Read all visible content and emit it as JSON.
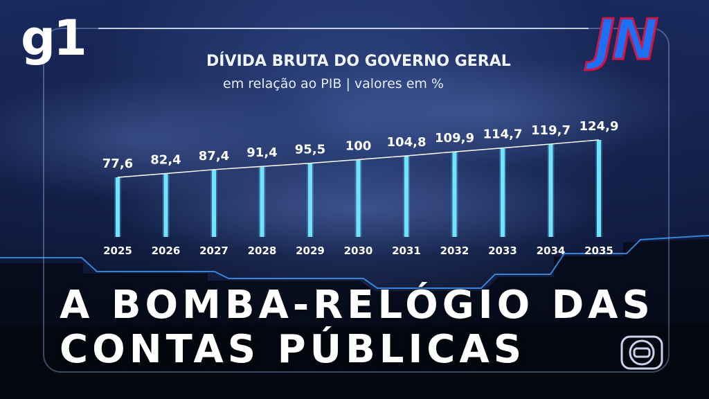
{
  "brand": {
    "left_logo": "g1",
    "right_logo": "JN"
  },
  "icons": [
    "globo-logo-icon"
  ],
  "colors": {
    "bar": "#6fe3ff",
    "trend_line": "#ffffff",
    "jn_fill": "#1e6ff5",
    "jn_outline": "#c81a4a"
  },
  "chart_data": {
    "type": "bar",
    "title": "DÍVIDA BRUTA DO GOVERNO GERAL",
    "subtitle": "em relação ao PIB | valores em %",
    "categories": [
      "2025",
      "2026",
      "2027",
      "2028",
      "2029",
      "2030",
      "2031",
      "2032",
      "2033",
      "2034",
      "2035"
    ],
    "values": [
      77.6,
      82.4,
      87.4,
      91.4,
      95.5,
      100,
      104.8,
      109.9,
      114.7,
      119.7,
      124.9
    ],
    "value_labels": [
      "77,6",
      "82,4",
      "87,4",
      "91,4",
      "95,5",
      "100",
      "104,8",
      "109,9",
      "114,7",
      "119,7",
      "124,9"
    ],
    "xlabel": "",
    "ylabel": "",
    "grid": false,
    "trend_line": true
  },
  "headline": {
    "line1": "A BOMBA-RELÓGIO DAS",
    "line2": "CONTAS PÚBLICAS"
  }
}
